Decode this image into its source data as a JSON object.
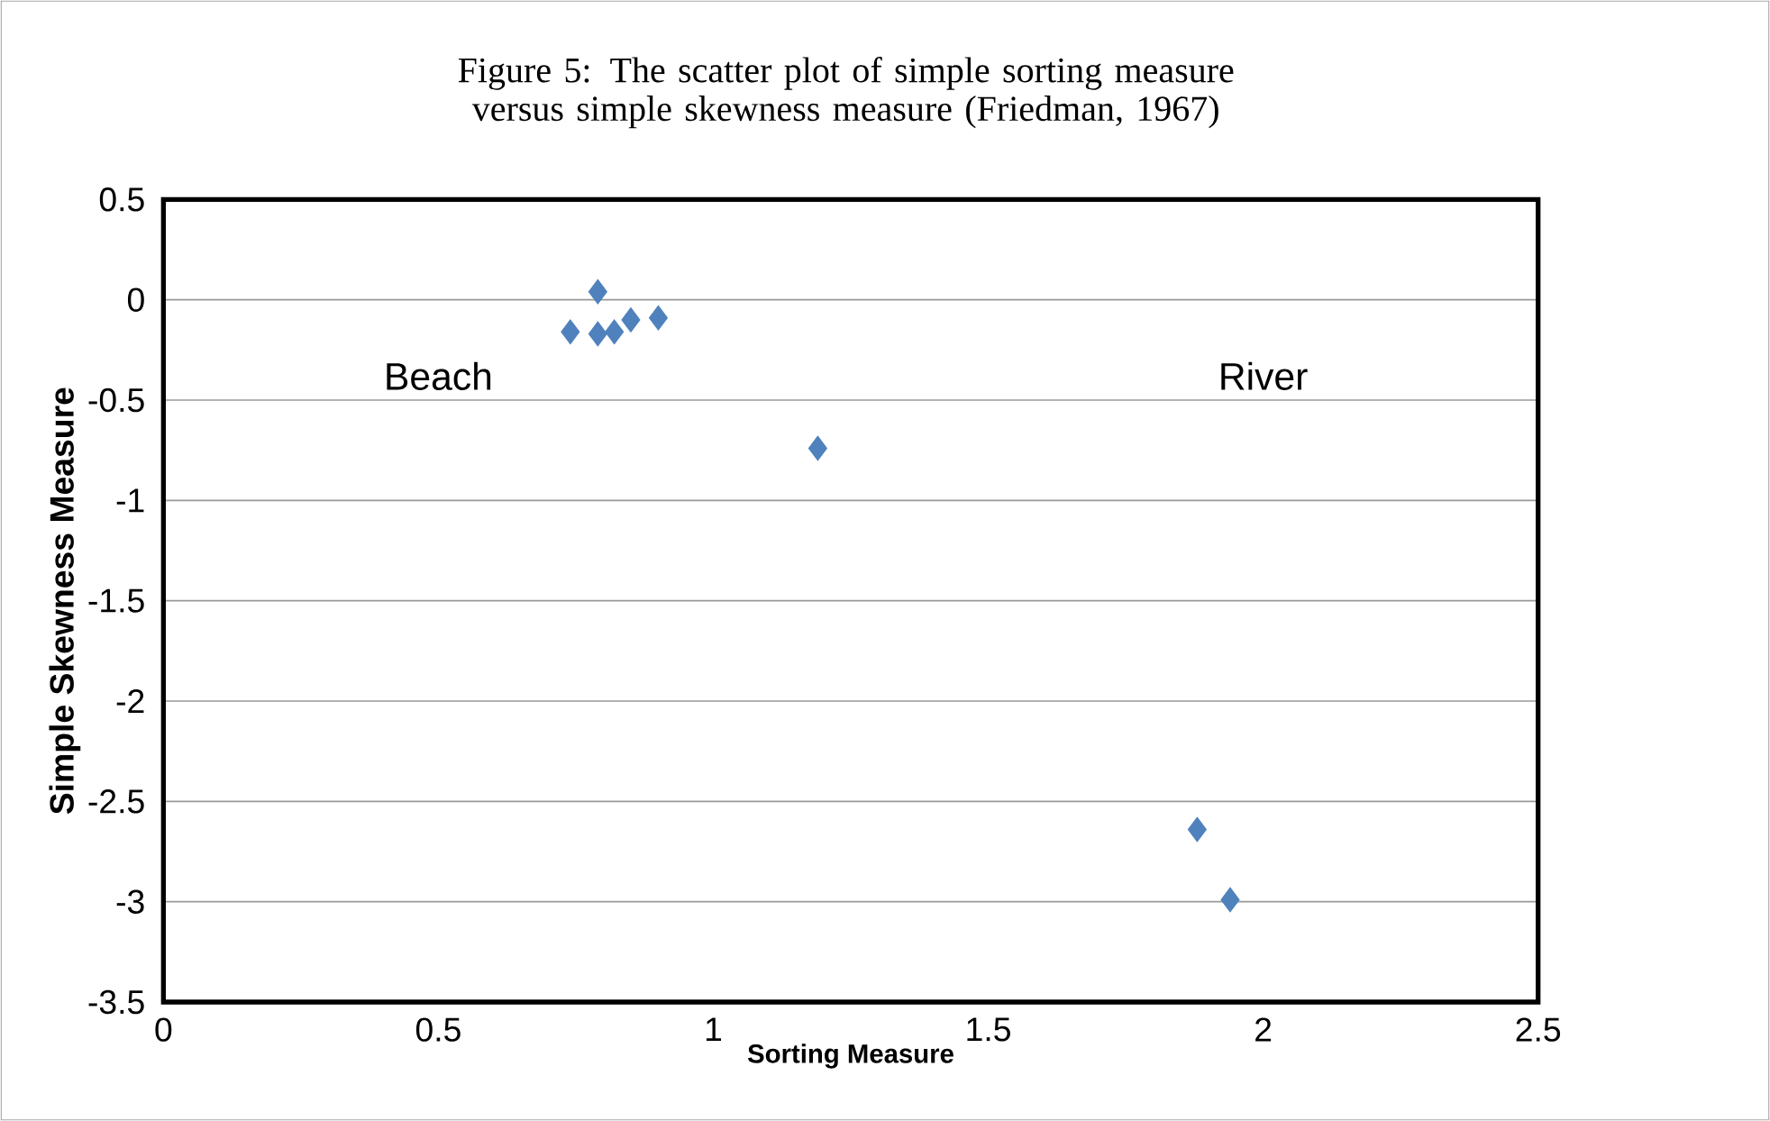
{
  "chart_data": {
    "type": "scatter",
    "title": "Figure 5: The scatter plot of simple sorting measure versus simple skewness measure (Friedman, 1967)",
    "xlabel": "Sorting Measure",
    "ylabel": "Simple Skewness Measure",
    "x": [
      0.74,
      0.79,
      0.79,
      0.82,
      0.85,
      0.9,
      1.19,
      1.88,
      1.94
    ],
    "series": [
      {
        "color": "#4f81bd",
        "values": [
          -0.16,
          0.04,
          -0.17,
          -0.16,
          -0.1,
          -0.09,
          -0.74,
          -2.64,
          -2.99
        ]
      }
    ],
    "xlim": [
      0,
      2.5
    ],
    "xticks": [
      0,
      0.5,
      1,
      1.5,
      2,
      2.5
    ],
    "ylim": [
      -3.5,
      0.5
    ],
    "yticks": [
      -3.5,
      -3,
      -2.5,
      -2,
      -1.5,
      -1,
      -0.5,
      0,
      0.5
    ],
    "grid": "y",
    "marker": "diamond",
    "annotations": [
      "Beach",
      "River"
    ]
  }
}
